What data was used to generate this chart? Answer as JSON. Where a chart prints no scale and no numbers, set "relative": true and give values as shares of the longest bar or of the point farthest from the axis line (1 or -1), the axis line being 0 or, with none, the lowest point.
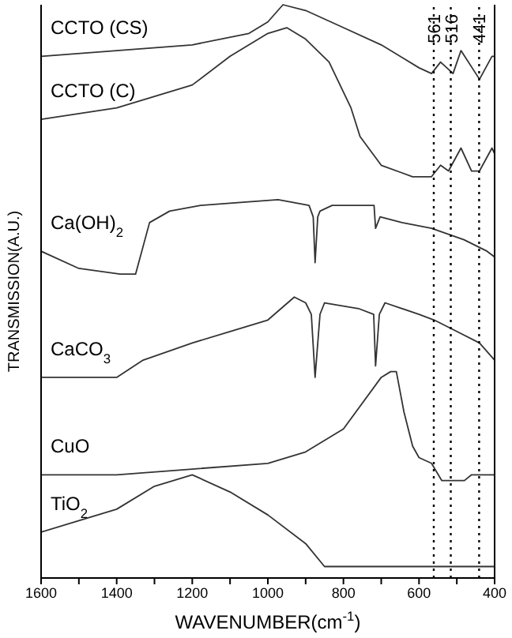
{
  "chart_data": {
    "type": "line",
    "relative": true,
    "xlabel": "WAVENUMBER(cm$^{-1}$)",
    "ylabel": "TRANSMISSION(A.U.)",
    "xlim": [
      1600,
      400
    ],
    "xticks": [
      1600,
      {
        "value": 1500,
        "label": null
      },
      1400,
      {
        "value": 1300,
        "label": null
      },
      1200,
      {
        "value": 1100,
        "label": null
      },
      1000,
      {
        "value": 900,
        "label": null
      },
      800,
      {
        "value": 700,
        "label": null
      },
      600,
      {
        "value": 500,
        "label": null
      },
      400
    ],
    "grid": false,
    "legend": false,
    "marker": "none",
    "line_style": "solid",
    "series": [
      {
        "name": "CCTO (CS)",
        "color": "#333333",
        "x": [
          1600,
          1400,
          1200,
          1050,
          1000,
          960,
          900,
          800,
          700,
          600,
          567,
          543,
          510,
          489,
          440,
          407,
          400
        ],
        "values": [
          0.91,
          0.92,
          0.93,
          0.95,
          0.97,
          1.0,
          0.99,
          0.96,
          0.93,
          0.89,
          0.88,
          0.9,
          0.88,
          0.92,
          0.87,
          0.91,
          0.91
        ]
      },
      {
        "name": "CCTO (C)",
        "color": "#333333",
        "x": [
          1600,
          1400,
          1300,
          1200,
          1100,
          1050,
          1000,
          950,
          900,
          838,
          780,
          756,
          700,
          617,
          567,
          543,
          522,
          489,
          461,
          440,
          407,
          400
        ],
        "values": [
          0.8,
          0.82,
          0.84,
          0.86,
          0.91,
          0.93,
          0.95,
          0.96,
          0.94,
          0.9,
          0.82,
          0.77,
          0.72,
          0.7,
          0.7,
          0.72,
          0.71,
          0.75,
          0.71,
          0.71,
          0.75,
          0.74
        ]
      },
      {
        "name": "Ca(OH)$_{2}$",
        "color": "#333333",
        "x": [
          1600,
          1500,
          1391,
          1350,
          1313,
          1260,
          1178,
          973,
          891,
          880,
          875,
          868,
          862,
          830,
          719,
          715,
          703,
          645,
          567,
          481,
          420,
          400
        ],
        "values": [
          0.57,
          0.54,
          0.53,
          0.53,
          0.62,
          0.64,
          0.65,
          0.66,
          0.65,
          0.63,
          0.55,
          0.63,
          0.64,
          0.65,
          0.65,
          0.61,
          0.63,
          0.62,
          0.61,
          0.59,
          0.57,
          0.56
        ]
      },
      {
        "name": "CaCO$_{3}$",
        "color": "#333333",
        "x": [
          1600,
          1400,
          1330,
          1200,
          1100,
          1000,
          930,
          900,
          885,
          875,
          862,
          850,
          760,
          720,
          715,
          705,
          690,
          600,
          560,
          500,
          440,
          400
        ],
        "values": [
          0.35,
          0.35,
          0.38,
          0.41,
          0.43,
          0.45,
          0.49,
          0.48,
          0.46,
          0.35,
          0.46,
          0.48,
          0.47,
          0.46,
          0.37,
          0.46,
          0.48,
          0.46,
          0.45,
          0.43,
          0.41,
          0.38
        ]
      },
      {
        "name": "CuO",
        "color": "#333333",
        "x": [
          1600,
          1400,
          1200,
          1000,
          900,
          800,
          700,
          675,
          660,
          640,
          617,
          600,
          567,
          540,
          510,
          480,
          461,
          440,
          400
        ],
        "values": [
          0.18,
          0.18,
          0.19,
          0.2,
          0.22,
          0.26,
          0.35,
          0.36,
          0.36,
          0.29,
          0.23,
          0.21,
          0.2,
          0.17,
          0.17,
          0.17,
          0.18,
          0.18,
          0.18
        ]
      },
      {
        "name": "TiO$_{2}$",
        "color": "#333333",
        "x": [
          1600,
          1500,
          1400,
          1300,
          1200,
          1100,
          1000,
          900,
          850,
          800,
          600,
          400
        ],
        "values": [
          0.08,
          0.1,
          0.12,
          0.16,
          0.18,
          0.15,
          0.11,
          0.06,
          0.02,
          0.02,
          0.02,
          0.02
        ]
      }
    ],
    "ref_lines": [
      {
        "axis": "x",
        "value": 561,
        "label": "561",
        "line_style": "dotted",
        "color": "#000000"
      },
      {
        "axis": "x",
        "value": 516,
        "label": "516",
        "line_style": "dotted",
        "color": "#000000"
      },
      {
        "axis": "x",
        "value": 441,
        "label": "441",
        "line_style": "dotted",
        "color": "#000000"
      }
    ]
  }
}
